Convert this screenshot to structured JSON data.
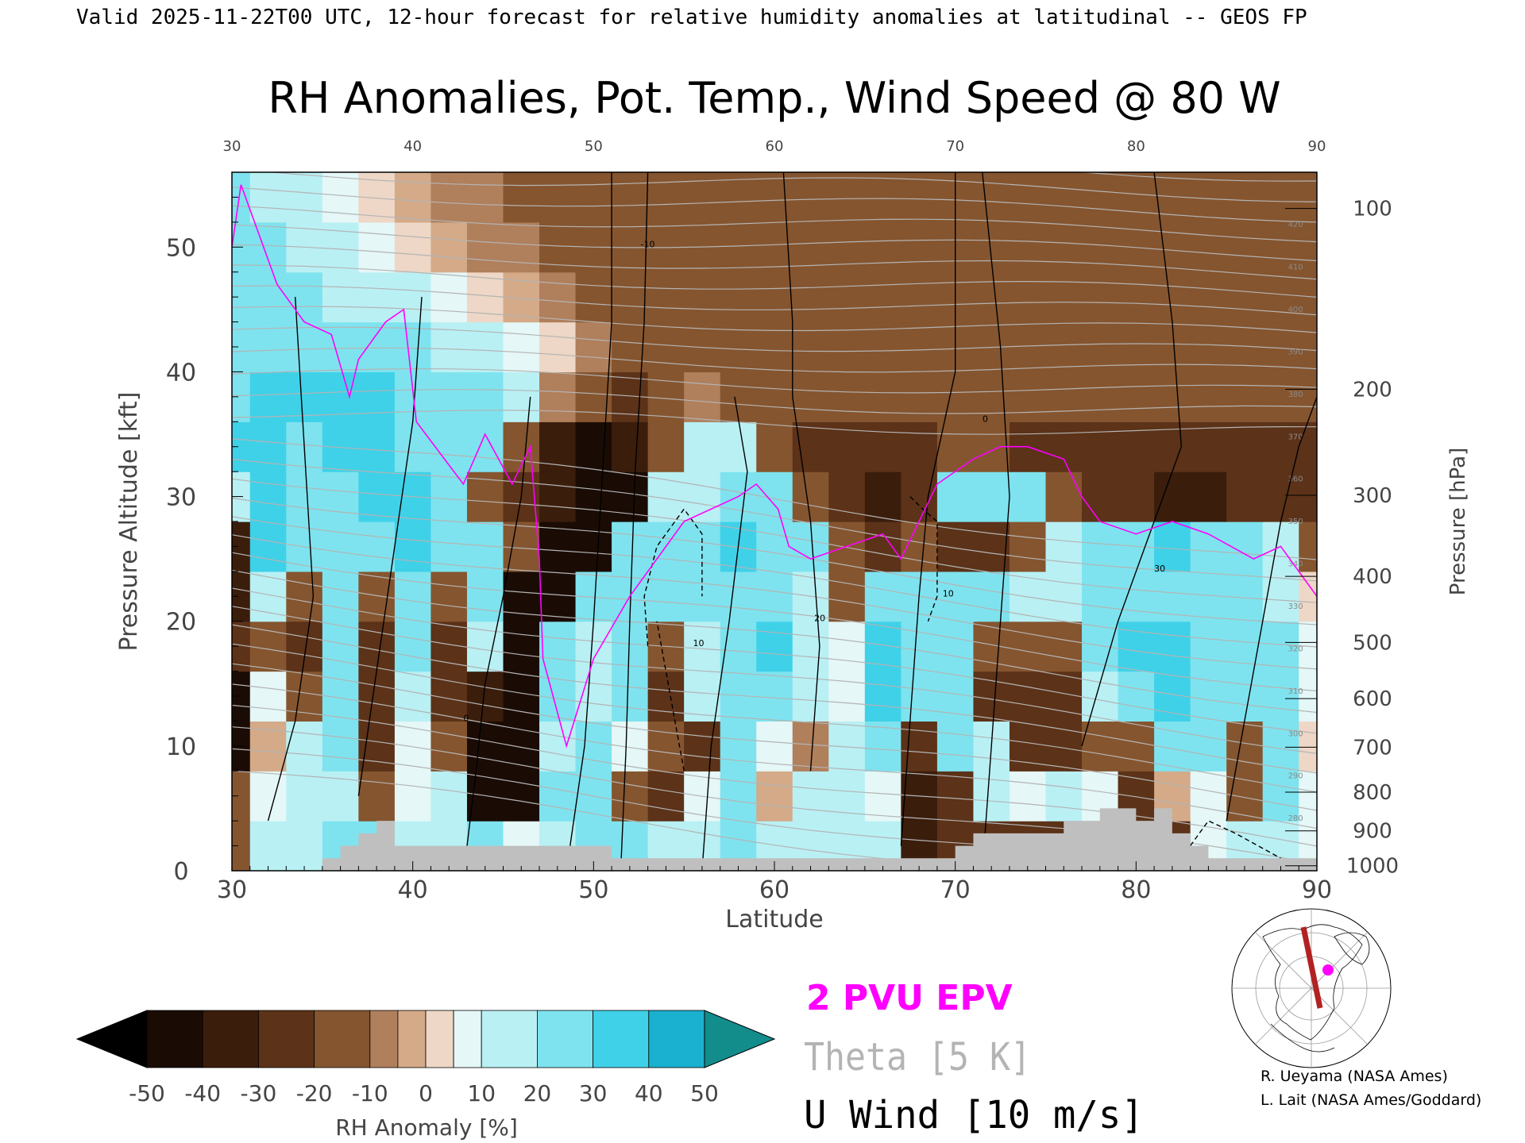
{
  "header": {
    "valid_line": "Valid 2025-11-22T00 UTC, 12-hour forecast for relative humidity anomalies at latitudinal -- GEOS FP"
  },
  "chart_data": {
    "type": "heatmap",
    "title": "RH Anomalies, Pot. Temp., Wind Speed @ 80 W",
    "xlabel": "Latitude",
    "ylabel": "Pressure Altitude [kft]",
    "y2label": "Pressure [hPa]",
    "xlim": [
      30,
      90
    ],
    "ylim": [
      0,
      56
    ],
    "x_ticks": [
      "30",
      "40",
      "50",
      "60",
      "70",
      "80",
      "90"
    ],
    "top_x_ticks": [
      "30",
      "40",
      "50",
      "60",
      "70",
      "80",
      "90"
    ],
    "y_ticks": [
      "0",
      "10",
      "20",
      "30",
      "40",
      "50"
    ],
    "pressure_ticks": [
      {
        "label": "100",
        "kft": 53.1
      },
      {
        "label": "200",
        "kft": 38.6
      },
      {
        "label": "300",
        "kft": 30.1
      },
      {
        "label": "400",
        "kft": 23.6
      },
      {
        "label": "500",
        "kft": 18.3
      },
      {
        "label": "600",
        "kft": 13.8
      },
      {
        "label": "700",
        "kft": 9.9
      },
      {
        "label": "800",
        "kft": 6.3
      },
      {
        "label": "900",
        "kft": 3.2
      },
      {
        "label": "1000",
        "kft": 0.4
      }
    ],
    "rh_anomaly_field": {
      "lat": [
        30,
        32,
        34,
        36,
        38,
        40,
        42,
        44,
        46,
        48,
        50,
        52,
        54,
        56,
        58,
        60,
        62,
        64,
        66,
        68,
        70,
        72,
        74,
        76,
        78,
        80,
        82,
        84,
        86,
        88,
        90
      ],
      "alt_kft": [
        2,
        6,
        10,
        14,
        18,
        22,
        26,
        30,
        34,
        38,
        42,
        46,
        50,
        54
      ],
      "values": [
        [
          -10,
          15,
          20,
          25,
          30,
          20,
          15,
          25,
          10,
          20,
          30,
          25,
          20,
          20,
          25,
          15,
          20,
          20,
          15,
          -30,
          -20,
          -25,
          -25,
          -20,
          -30,
          -35,
          -20,
          10,
          20,
          15,
          10
        ],
        [
          -15,
          10,
          15,
          20,
          -15,
          10,
          20,
          -40,
          -45,
          25,
          25,
          -10,
          -20,
          10,
          25,
          0,
          20,
          15,
          10,
          -30,
          -20,
          15,
          10,
          20,
          10,
          -25,
          0,
          10,
          -10,
          25,
          10
        ],
        [
          -50,
          0,
          20,
          25,
          -20,
          10,
          -10,
          -50,
          -45,
          20,
          25,
          10,
          -10,
          -25,
          30,
          10,
          -5,
          20,
          30,
          -20,
          25,
          20,
          -20,
          -25,
          -15,
          -10,
          30,
          30,
          -10,
          25,
          5
        ],
        [
          -50,
          10,
          -10,
          30,
          -25,
          20,
          -25,
          -30,
          -40,
          25,
          20,
          25,
          -20,
          20,
          25,
          30,
          20,
          10,
          35,
          25,
          30,
          -20,
          -25,
          -20,
          15,
          30,
          35,
          30,
          30,
          25,
          10
        ],
        [
          -20,
          -15,
          -20,
          25,
          -25,
          25,
          -20,
          20,
          -40,
          30,
          15,
          30,
          -15,
          15,
          30,
          35,
          20,
          10,
          35,
          30,
          30,
          -15,
          -10,
          -10,
          25,
          35,
          35,
          30,
          30,
          30,
          10
        ],
        [
          -30,
          20,
          -10,
          30,
          -10,
          30,
          -15,
          25,
          -50,
          -40,
          30,
          30,
          25,
          25,
          30,
          30,
          20,
          -10,
          30,
          25,
          30,
          25,
          20,
          20,
          25,
          30,
          30,
          30,
          25,
          20,
          5
        ],
        [
          -30,
          35,
          25,
          30,
          25,
          35,
          25,
          30,
          -10,
          -50,
          -50,
          25,
          30,
          30,
          35,
          30,
          30,
          -15,
          -20,
          -15,
          -20,
          -20,
          -10,
          15,
          30,
          30,
          35,
          30,
          30,
          20,
          -10
        ],
        [
          20,
          40,
          25,
          30,
          35,
          40,
          30,
          -10,
          -20,
          -30,
          -50,
          -40,
          20,
          20,
          30,
          25,
          -15,
          -25,
          -30,
          -20,
          25,
          30,
          30,
          -15,
          -20,
          -25,
          -30,
          -30,
          -20,
          -20,
          -25
        ],
        [
          35,
          40,
          30,
          35,
          40,
          30,
          25,
          30,
          -10,
          -30,
          -40,
          -30,
          -15,
          15,
          20,
          -10,
          -25,
          -25,
          -25,
          -20,
          -10,
          -15,
          -20,
          -25,
          -25,
          -20,
          -25,
          -25,
          -20,
          -20,
          -20
        ],
        [
          30,
          35,
          35,
          35,
          35,
          30,
          30,
          25,
          20,
          -5,
          -15,
          -20,
          -10,
          -5,
          -10,
          -15,
          -15,
          -15,
          -15,
          -10,
          -10,
          -10,
          -10,
          -10,
          -10,
          -10,
          -10,
          -10,
          -10,
          -10,
          -10
        ],
        [
          25,
          30,
          30,
          30,
          30,
          25,
          20,
          15,
          10,
          5,
          -5,
          -10,
          -10,
          -10,
          -10,
          -10,
          -10,
          -10,
          -10,
          -10,
          -10,
          -10,
          -10,
          -10,
          -10,
          -10,
          -10,
          -10,
          -10,
          -10,
          -10
        ],
        [
          25,
          25,
          25,
          20,
          20,
          15,
          10,
          5,
          0,
          -5,
          -10,
          -10,
          -10,
          -10,
          -10,
          -10,
          -10,
          -10,
          -10,
          -10,
          -10,
          -10,
          -10,
          -10,
          -10,
          -10,
          -10,
          -10,
          -10,
          -10,
          -10
        ],
        [
          25,
          25,
          20,
          15,
          10,
          5,
          0,
          -5,
          -5,
          -10,
          -10,
          -10,
          -10,
          -10,
          -10,
          -10,
          -10,
          -10,
          -10,
          -10,
          -10,
          -10,
          -10,
          -10,
          -10,
          -10,
          -10,
          -10,
          -10,
          -10,
          -10
        ],
        [
          25,
          20,
          15,
          10,
          5,
          0,
          -5,
          -5,
          -10,
          -10,
          -10,
          -10,
          -10,
          -10,
          -10,
          -10,
          -10,
          -10,
          -10,
          -10,
          -10,
          -10,
          -10,
          -10,
          -10,
          -10,
          -10,
          -10,
          -10,
          -10,
          -10
        ]
      ]
    },
    "theta_contours": {
      "interval_K": 5,
      "labels": [
        "280",
        "290",
        "300",
        "310",
        "320",
        "330",
        "340",
        "350",
        "360",
        "370",
        "380",
        "390",
        "400",
        "410",
        "420"
      ]
    },
    "u_wind_contours": {
      "interval_ms": 10,
      "labels": [
        "0",
        "10",
        "20",
        "30",
        "-10"
      ],
      "lines": [
        {
          "x": [
            43.0,
            43.5,
            44.0,
            45.0,
            46.0,
            46.5
          ],
          "y": [
            2,
            8,
            15,
            22,
            30,
            38
          ]
        },
        {
          "x": [
            48.5,
            49.5,
            50.0,
            50.5,
            51.0,
            51.0
          ],
          "y": [
            0,
            10,
            20,
            32,
            44,
            56
          ]
        },
        {
          "x": [
            51.5,
            51.8,
            52.0,
            52.3,
            52.8,
            53.0
          ],
          "y": [
            0,
            10,
            20,
            32,
            44,
            56
          ]
        },
        {
          "x": [
            56.0,
            56.5,
            57.5,
            58.5,
            57.8
          ],
          "y": [
            0,
            10,
            20,
            32,
            38
          ]
        },
        {
          "x": [
            62.0,
            62.5,
            62.0,
            61.0,
            61.0,
            60.5
          ],
          "y": [
            8,
            18,
            28,
            38,
            44,
            56
          ]
        },
        {
          "x": [
            67.0,
            67.5,
            68.0,
            68.5,
            70.0,
            70.0
          ],
          "y": [
            2,
            12,
            22,
            30,
            40,
            56
          ]
        },
        {
          "x": [
            71.5,
            72.0,
            72.5,
            73.0,
            72.5,
            71.5
          ],
          "y": [
            0,
            10,
            20,
            30,
            42,
            56
          ]
        },
        {
          "x": [
            77.0,
            79.0,
            81.0,
            82.5,
            82.0,
            81.0
          ],
          "y": [
            10,
            20,
            28,
            34,
            44,
            56
          ]
        },
        {
          "x": [
            85.0,
            86.0,
            87.0,
            88.0,
            89.0,
            90.0
          ],
          "y": [
            4,
            12,
            20,
            28,
            34,
            38
          ]
        },
        {
          "x": [
            32.0,
            33.5,
            34.5,
            34.0,
            33.5
          ],
          "y": [
            4,
            12,
            22,
            34,
            46
          ]
        },
        {
          "x": [
            37.0,
            38.0,
            39.0,
            40.0,
            40.5
          ],
          "y": [
            6,
            16,
            26,
            36,
            46
          ]
        }
      ],
      "negative_lines": [
        {
          "x": [
            53.0,
            52.8,
            53.5,
            55.0,
            56.0,
            56.0
          ],
          "y": [
            18,
            22,
            26,
            29,
            27,
            22
          ]
        },
        {
          "x": [
            55.0,
            54.5,
            54.0,
            53.5
          ],
          "y": [
            8,
            12,
            16,
            20
          ]
        },
        {
          "x": [
            67.5,
            68.2,
            69.0,
            69.0,
            68.5
          ],
          "y": [
            30,
            29,
            28,
            22,
            20
          ]
        },
        {
          "x": [
            83.0,
            84.0,
            85.5,
            88.0
          ],
          "y": [
            2,
            4,
            3,
            1
          ]
        }
      ]
    },
    "pv_2pvu_contour": {
      "label": "2 PVU EPV",
      "x": [
        30,
        30.5,
        32.5,
        34,
        35.5,
        36.5,
        37,
        38.5,
        39.5,
        40.2,
        42.8,
        44,
        45.5,
        46.5,
        47,
        47.2,
        48.5,
        50,
        52,
        55,
        58,
        59,
        60.2,
        60.8,
        62,
        64,
        66,
        67,
        68,
        69,
        71,
        72.5,
        74,
        76,
        77,
        78,
        80,
        82,
        84,
        86.5,
        88,
        89,
        90
      ],
      "y": [
        50,
        55,
        47,
        44,
        43,
        38,
        41,
        44,
        45,
        36,
        31,
        35,
        31,
        34,
        25,
        17,
        10,
        17,
        22,
        28,
        30,
        31,
        29,
        26,
        25,
        26,
        27,
        25,
        28,
        31,
        33,
        34,
        34,
        33,
        30,
        28,
        27,
        28,
        27,
        25,
        26,
        24,
        22
      ]
    },
    "topography_kft": {
      "lat": [
        30,
        34,
        35,
        36,
        37,
        38,
        39,
        40,
        41,
        42,
        43,
        44,
        45,
        46,
        47,
        48,
        49,
        50,
        51,
        52,
        60,
        70,
        71,
        72,
        73,
        74,
        75,
        76,
        77,
        78,
        79,
        80,
        81,
        82,
        83,
        84,
        90
      ],
      "alt": [
        0,
        0,
        1,
        2,
        3,
        4,
        2,
        2,
        2,
        2,
        2,
        2,
        2,
        2,
        2,
        2,
        2,
        2,
        1,
        1,
        1,
        2,
        3,
        3,
        3,
        3,
        3,
        4,
        4,
        5,
        5,
        4,
        5,
        3,
        2,
        1,
        0
      ]
    },
    "colorbar": {
      "label": "RH Anomaly [%]",
      "ticks": [
        "-50",
        "-40",
        "-30",
        "-20",
        "-10",
        "0",
        "10",
        "20",
        "30",
        "40",
        "50"
      ],
      "colors": [
        "#1a0c05",
        "#3b1d0c",
        "#5c3218",
        "#85552f",
        "#b07f5c",
        "#d4aa88",
        "#eed7c6",
        "#e5f7f7",
        "#b9f0f4",
        "#7ee3ef",
        "#3fd1e8",
        "#1ab0cf",
        "#10809f"
      ],
      "under_color": "#000000",
      "over_color": "#138c8c"
    },
    "legend": {
      "pv": "2 PVU EPV",
      "theta": "Theta [5 K]",
      "wind": "U Wind [10 m/s]",
      "pv_color": "#ff00ff",
      "theta_color": "#b4b4b4",
      "wind_color": "#000000"
    },
    "inset_map_caption": "",
    "topography_color": "#bfbfbf"
  },
  "credits": {
    "line1": "R. Ueyama (NASA Ames)",
    "line2": "L. Lait (NASA Ames/Goddard)"
  }
}
